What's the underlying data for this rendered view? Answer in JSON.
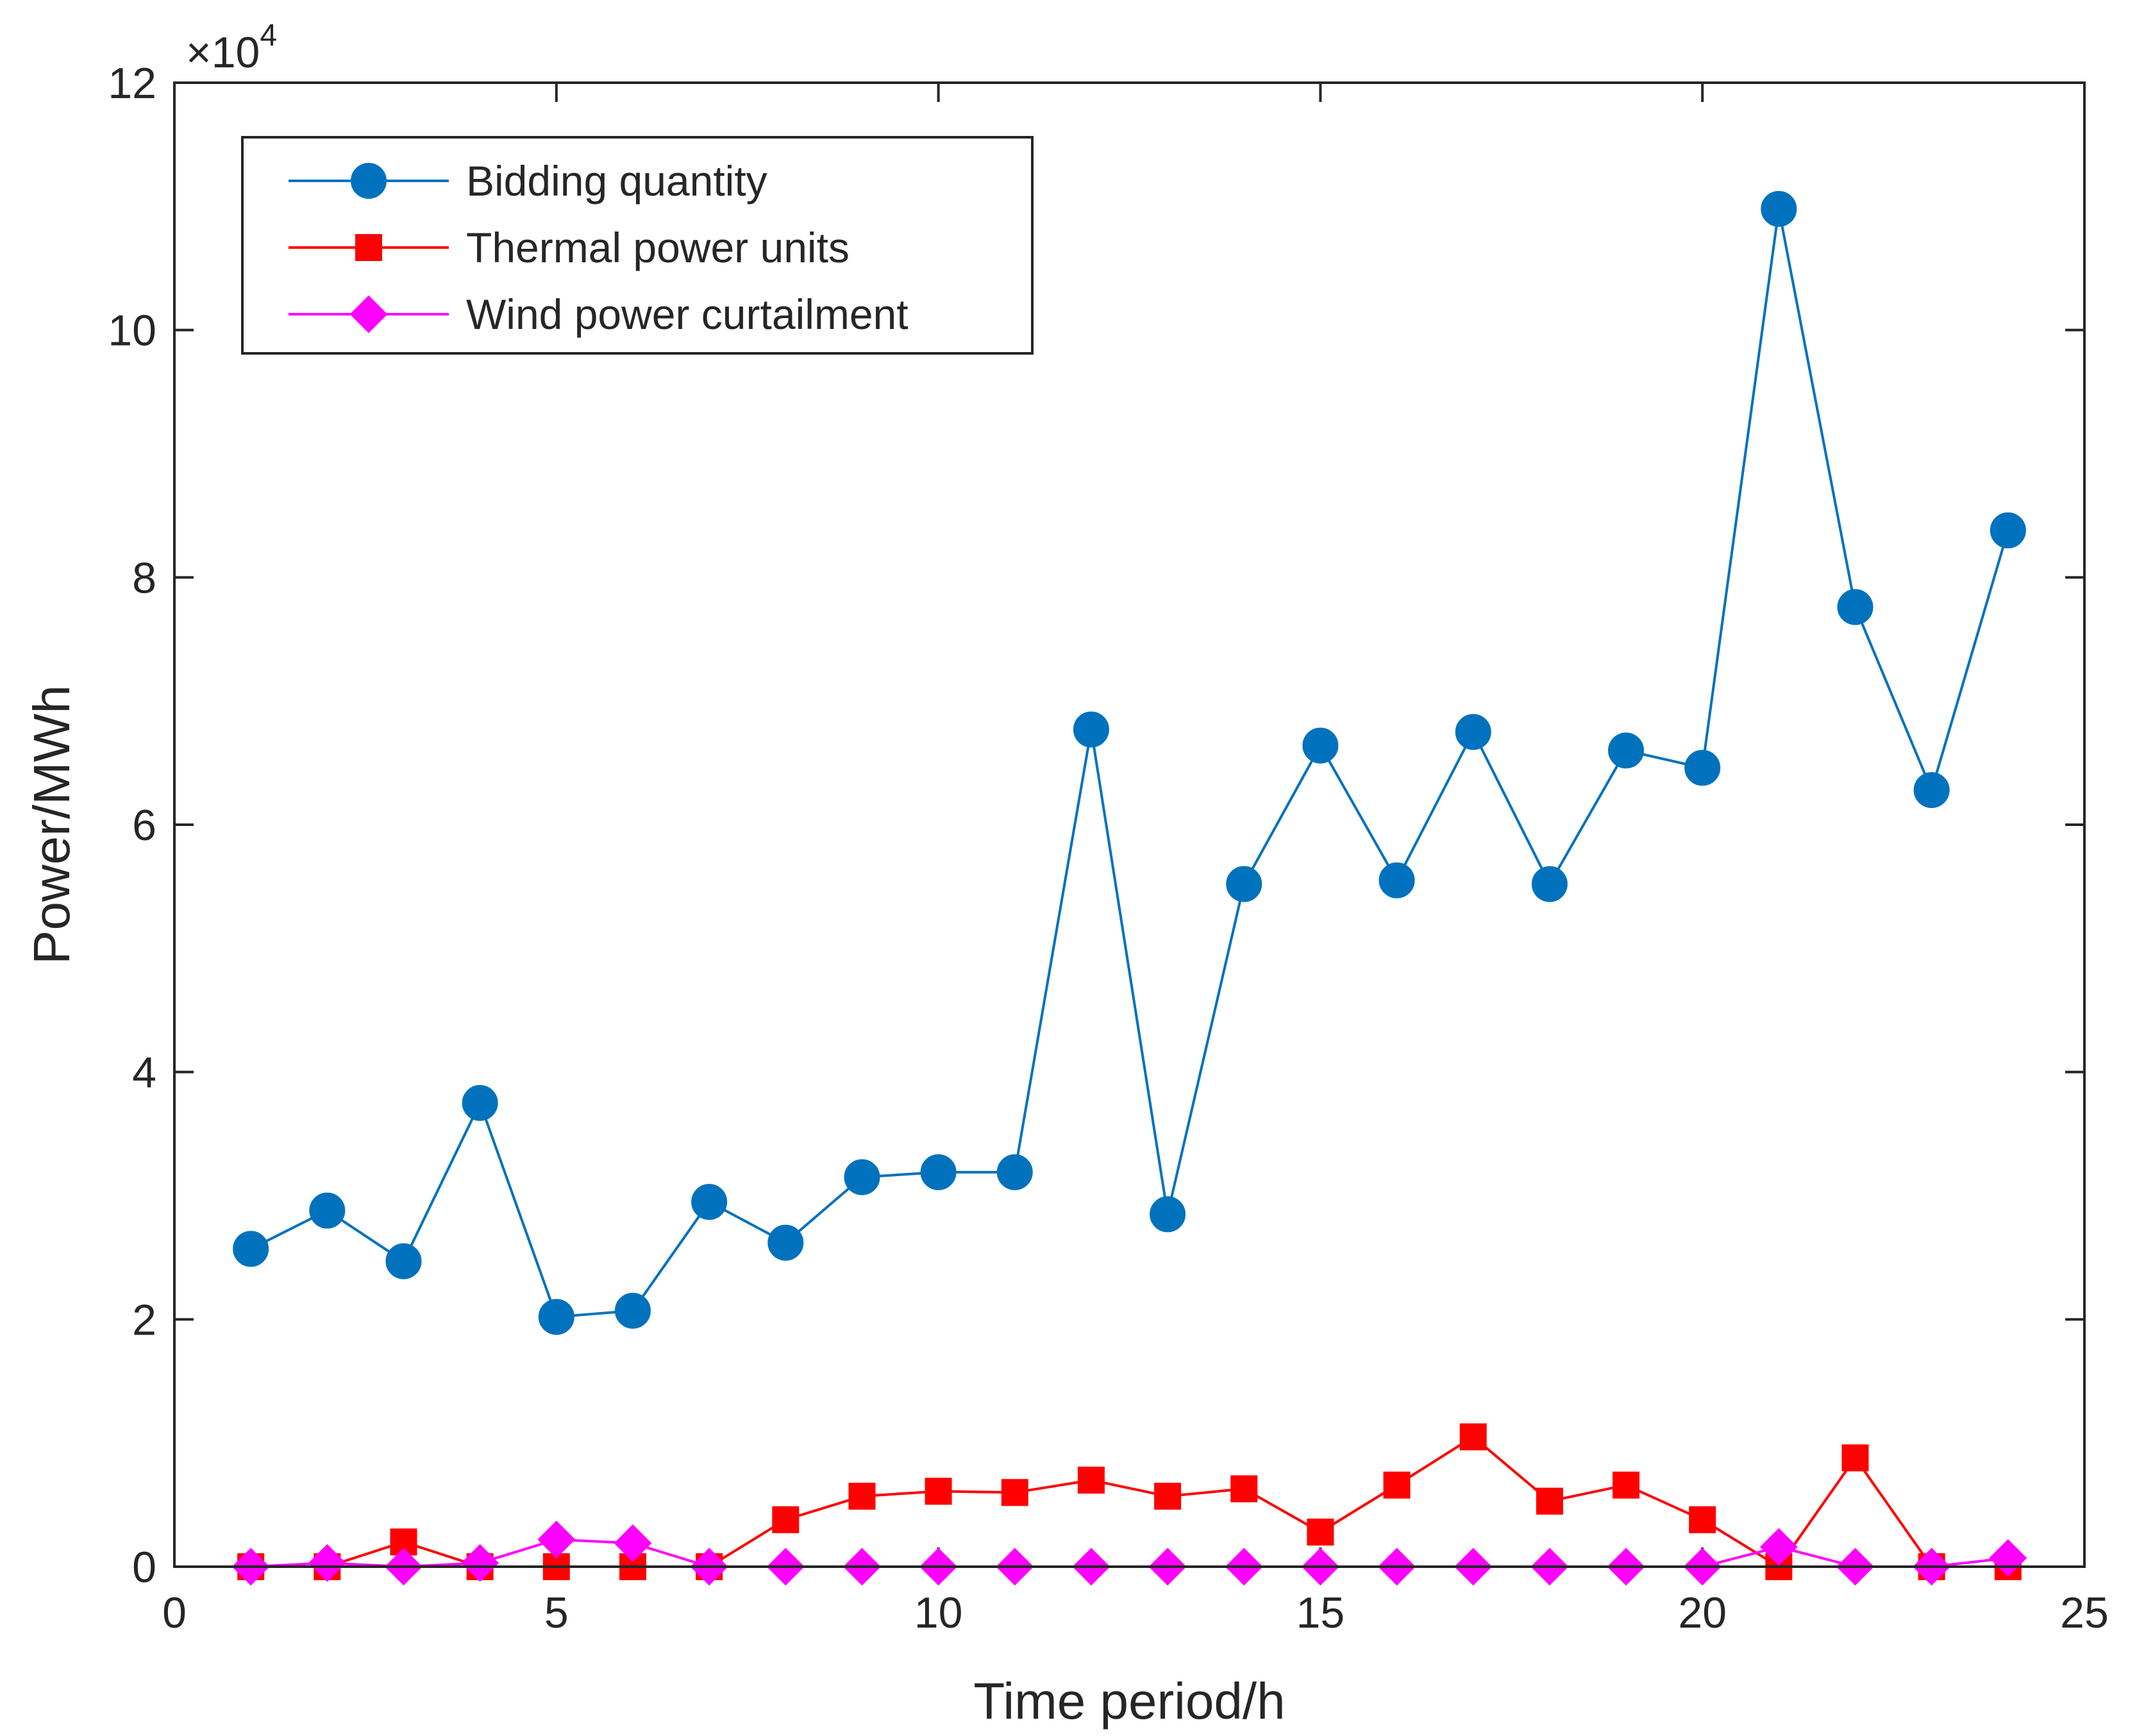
{
  "chart_data": {
    "type": "line",
    "title": "",
    "xlabel": "Time period/h",
    "ylabel": "Power/MWh",
    "xlim": [
      0,
      25
    ],
    "ylim": [
      0,
      12
    ],
    "y_multiplier": "×10",
    "y_exponent": "4",
    "xticks": [
      0,
      5,
      10,
      15,
      20,
      25
    ],
    "yticks": [
      0,
      2,
      4,
      6,
      8,
      10,
      12
    ],
    "grid": false,
    "legend_position": "top-left",
    "x": [
      1,
      2,
      3,
      4,
      5,
      6,
      7,
      8,
      9,
      10,
      11,
      12,
      13,
      14,
      15,
      16,
      17,
      18,
      19,
      20,
      21,
      22,
      23,
      24
    ],
    "series": [
      {
        "name": "Bidding quantity",
        "color": "#0072BD",
        "marker": "circle",
        "values": [
          2.57,
          2.88,
          2.47,
          3.75,
          2.02,
          2.07,
          2.95,
          2.62,
          3.15,
          3.19,
          3.19,
          6.77,
          2.85,
          5.52,
          6.64,
          5.55,
          6.75,
          5.52,
          6.6,
          6.46,
          10.98,
          7.76,
          6.28,
          8.38
        ]
      },
      {
        "name": "Thermal power units",
        "color": "#FF0000",
        "marker": "square",
        "values": [
          0.0,
          0.0,
          0.2,
          0.0,
          0.0,
          0.0,
          0.0,
          0.38,
          0.57,
          0.61,
          0.6,
          0.7,
          0.57,
          0.63,
          0.28,
          0.66,
          1.05,
          0.53,
          0.66,
          0.38,
          0.0,
          0.88,
          0.0,
          0.0
        ]
      },
      {
        "name": "Wind power curtailment",
        "color": "#FF00FF",
        "marker": "diamond",
        "values": [
          0.0,
          0.03,
          0.0,
          0.03,
          0.22,
          0.19,
          0.0,
          0.0,
          0.0,
          0.0,
          0.0,
          0.0,
          0.0,
          0.0,
          0.0,
          0.0,
          0.0,
          0.0,
          0.0,
          0.0,
          0.16,
          0.0,
          0.0,
          0.07
        ]
      }
    ]
  }
}
